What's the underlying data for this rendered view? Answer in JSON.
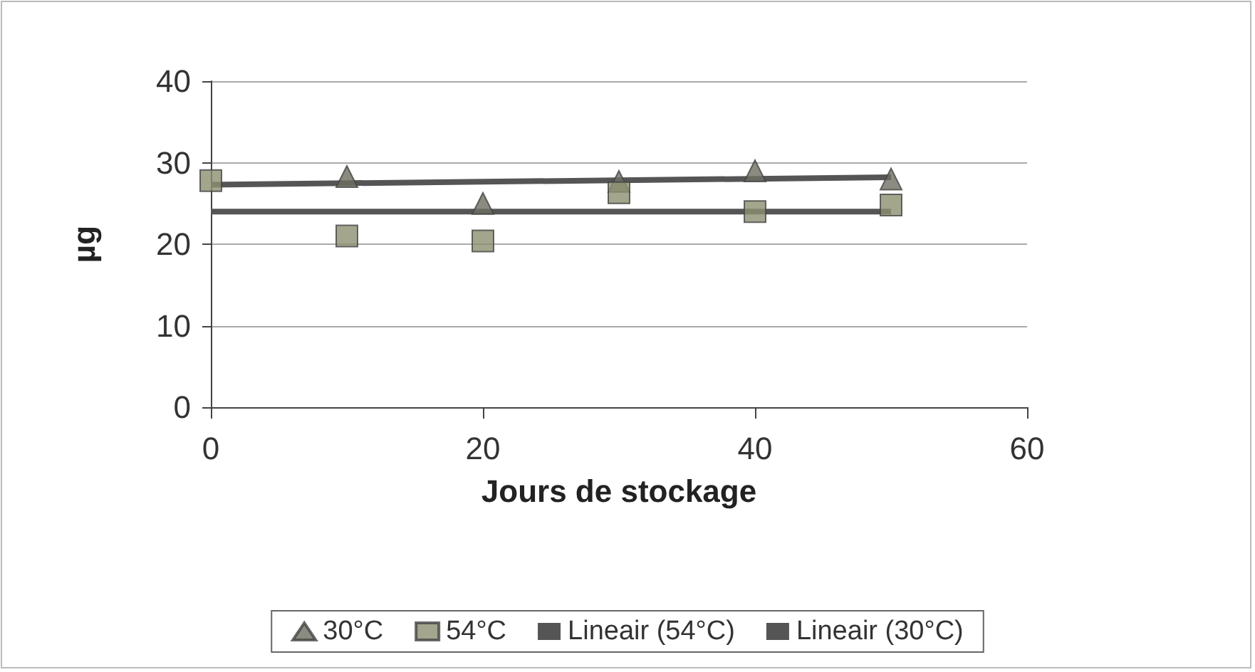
{
  "chart_data": {
    "type": "scatter",
    "xlabel": "Jours de stockage",
    "ylabel": "µg",
    "xlim": [
      0,
      60
    ],
    "xticks": [
      0,
      20,
      40,
      60
    ],
    "ylim": [
      0,
      40
    ],
    "yticks": [
      0,
      10,
      20,
      30,
      40
    ],
    "grid": "y",
    "legend": "bottom",
    "series": [
      {
        "name": "30°C",
        "color": "#6e6e62",
        "marker": "triangle",
        "x": [
          10,
          20,
          30,
          40,
          50
        ],
        "values": [
          28.3,
          25,
          27.7,
          29,
          28
        ]
      },
      {
        "name": "54°C",
        "color": "#8c9070",
        "marker": "square",
        "x": [
          0,
          10,
          20,
          30,
          40,
          50
        ],
        "values": [
          27.8,
          21,
          20.4,
          26.3,
          24,
          24.8
        ]
      },
      {
        "name": "Lineair (54°C)",
        "type": "line",
        "color": "#555555",
        "marker": "none",
        "x": [
          0,
          50
        ],
        "values": [
          24,
          24
        ]
      },
      {
        "name": "Lineair (30°C)",
        "type": "line",
        "color": "#555555",
        "marker": "none",
        "x": [
          0,
          50
        ],
        "values": [
          27.3,
          28.2
        ]
      }
    ]
  }
}
